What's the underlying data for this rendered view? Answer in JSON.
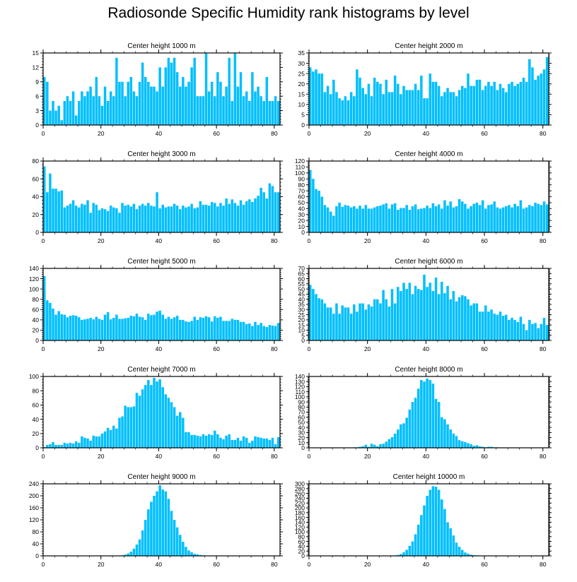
{
  "title": "Radiosonde Specific Humidity rank histograms by level",
  "colors": {
    "bar": "#00BFFF",
    "bar_edge": "#ffffff",
    "axis": "#000000"
  },
  "chart_data": [
    {
      "type": "bar",
      "title": "Center height 1000 m",
      "xlim": [
        0,
        82
      ],
      "ylim": [
        0,
        15
      ],
      "xticks": [
        0,
        20,
        40,
        60,
        80
      ],
      "yticks": [
        0,
        3,
        6,
        9,
        12,
        15
      ],
      "values": [
        10,
        9,
        3,
        5,
        3,
        4,
        1,
        5,
        6,
        5,
        7,
        2,
        5,
        7,
        6,
        7,
        8,
        6,
        10,
        6,
        4,
        8,
        5,
        7,
        6,
        14,
        9,
        9,
        6,
        9,
        10,
        7,
        6,
        9,
        13,
        10,
        9,
        8,
        8,
        7,
        12,
        8,
        12,
        14,
        13,
        14,
        11,
        8,
        10,
        8,
        9,
        12,
        14,
        6,
        6,
        6,
        15,
        7,
        9,
        6,
        11,
        9,
        6,
        8,
        14,
        5,
        15,
        8,
        11,
        6,
        7,
        5,
        11,
        7,
        8,
        6,
        5,
        10,
        5,
        5,
        6,
        5
      ]
    },
    {
      "type": "bar",
      "title": "Center height 2000 m",
      "xlim": [
        0,
        82
      ],
      "ylim": [
        0,
        35
      ],
      "xticks": [
        0,
        20,
        40,
        60,
        80
      ],
      "yticks": [
        0,
        5,
        10,
        15,
        20,
        25,
        30,
        35
      ],
      "values": [
        28,
        26,
        27,
        25,
        25,
        16,
        19,
        15,
        22,
        16,
        13,
        12,
        14,
        12,
        16,
        14,
        27,
        23,
        18,
        15,
        20,
        14,
        23,
        21,
        20,
        15,
        22,
        16,
        16,
        24,
        20,
        15,
        19,
        17,
        17,
        17,
        20,
        17,
        24,
        13,
        13,
        25,
        21,
        21,
        19,
        14,
        16,
        18,
        16,
        16,
        14,
        17,
        19,
        18,
        25,
        19,
        19,
        22,
        22,
        17,
        19,
        21,
        19,
        21,
        17,
        20,
        18,
        16,
        20,
        21,
        19,
        20,
        21,
        23,
        21,
        32,
        28,
        22,
        24,
        25,
        27,
        33
      ]
    },
    {
      "type": "bar",
      "title": "Center height 3000 m",
      "xlim": [
        0,
        82
      ],
      "ylim": [
        0,
        80
      ],
      "xticks": [
        0,
        20,
        40,
        60,
        80
      ],
      "yticks": [
        0,
        20,
        40,
        60,
        80
      ],
      "values": [
        74,
        45,
        66,
        49,
        49,
        46,
        47,
        28,
        30,
        32,
        36,
        30,
        28,
        32,
        31,
        36,
        22,
        33,
        31,
        25,
        27,
        26,
        24,
        30,
        28,
        27,
        22,
        33,
        30,
        31,
        29,
        32,
        26,
        30,
        32,
        30,
        33,
        30,
        29,
        45,
        27,
        31,
        28,
        29,
        29,
        32,
        30,
        26,
        30,
        28,
        29,
        32,
        27,
        28,
        35,
        31,
        31,
        30,
        34,
        33,
        29,
        33,
        30,
        38,
        32,
        37,
        33,
        30,
        36,
        31,
        35,
        37,
        34,
        38,
        41,
        50,
        45,
        38,
        55,
        52,
        45,
        45
      ]
    },
    {
      "type": "bar",
      "title": "Center height 4000 m",
      "xlim": [
        0,
        82
      ],
      "ylim": [
        0,
        120
      ],
      "xticks": [
        0,
        20,
        40,
        60,
        80
      ],
      "yticks": [
        0,
        10,
        20,
        30,
        40,
        50,
        60,
        70,
        80,
        90,
        100,
        110,
        120
      ],
      "values": [
        105,
        90,
        73,
        70,
        60,
        46,
        42,
        35,
        28,
        44,
        50,
        43,
        46,
        45,
        42,
        44,
        40,
        45,
        40,
        46,
        40,
        40,
        42,
        44,
        45,
        47,
        49,
        40,
        47,
        49,
        38,
        41,
        41,
        46,
        38,
        44,
        47,
        39,
        40,
        41,
        45,
        41,
        49,
        44,
        47,
        40,
        54,
        45,
        52,
        42,
        44,
        56,
        52,
        48,
        40,
        44,
        48,
        50,
        46,
        54,
        40,
        46,
        47,
        52,
        42,
        40,
        42,
        44,
        46,
        42,
        48,
        44,
        54,
        40,
        42,
        46,
        44,
        50,
        48,
        46,
        52,
        47
      ]
    },
    {
      "type": "bar",
      "title": "Center height 5000 m",
      "xlim": [
        0,
        82
      ],
      "ylim": [
        0,
        140
      ],
      "xticks": [
        0,
        20,
        40,
        60,
        80
      ],
      "yticks": [
        0,
        20,
        40,
        60,
        80,
        100,
        120,
        140
      ],
      "values": [
        125,
        78,
        73,
        62,
        50,
        57,
        51,
        50,
        45,
        48,
        49,
        48,
        45,
        40,
        41,
        42,
        44,
        41,
        46,
        42,
        40,
        50,
        55,
        41,
        44,
        50,
        42,
        42,
        43,
        44,
        48,
        47,
        52,
        46,
        45,
        40,
        52,
        49,
        50,
        56,
        58,
        50,
        42,
        46,
        42,
        45,
        48,
        40,
        40,
        37,
        36,
        38,
        46,
        40,
        45,
        44,
        47,
        45,
        37,
        47,
        44,
        46,
        38,
        38,
        38,
        42,
        40,
        40,
        36,
        36,
        32,
        33,
        28,
        36,
        30,
        34,
        28,
        26,
        30,
        29,
        28,
        34
      ]
    },
    {
      "type": "bar",
      "title": "Center height 6000 m",
      "xlim": [
        0,
        82
      ],
      "ylim": [
        0,
        70
      ],
      "xticks": [
        0,
        20,
        40,
        60,
        80
      ],
      "yticks": [
        0,
        5,
        10,
        15,
        20,
        25,
        30,
        35,
        40,
        45,
        50,
        55,
        60,
        65,
        70
      ],
      "values": [
        54,
        50,
        45,
        41,
        40,
        36,
        32,
        32,
        26,
        36,
        26,
        34,
        32,
        32,
        26,
        35,
        28,
        36,
        36,
        30,
        35,
        33,
        40,
        40,
        36,
        49,
        40,
        33,
        50,
        36,
        52,
        48,
        56,
        50,
        56,
        45,
        53,
        50,
        49,
        64,
        52,
        56,
        48,
        61,
        45,
        57,
        46,
        53,
        40,
        48,
        38,
        42,
        44,
        43,
        40,
        34,
        36,
        36,
        28,
        28,
        34,
        28,
        30,
        26,
        25,
        28,
        24,
        25,
        20,
        22,
        20,
        18,
        23,
        16,
        10,
        20,
        16,
        17,
        12,
        16,
        22,
        15
      ]
    },
    {
      "type": "bar",
      "title": "Center height 7000 m",
      "xlim": [
        0,
        82
      ],
      "ylim": [
        0,
        100
      ],
      "xticks": [
        0,
        20,
        40,
        60,
        80
      ],
      "yticks": [
        0,
        20,
        40,
        60,
        80,
        100
      ],
      "values": [
        1,
        4,
        5,
        8,
        4,
        4,
        4,
        7,
        6,
        7,
        6,
        9,
        7,
        16,
        14,
        13,
        10,
        17,
        16,
        16,
        20,
        23,
        28,
        25,
        31,
        27,
        42,
        44,
        59,
        57,
        57,
        58,
        77,
        73,
        82,
        88,
        95,
        88,
        98,
        93,
        96,
        85,
        75,
        70,
        64,
        57,
        45,
        50,
        42,
        22,
        22,
        18,
        18,
        17,
        16,
        19,
        17,
        19,
        18,
        24,
        19,
        14,
        12,
        17,
        19,
        11,
        11,
        14,
        10,
        16,
        14,
        7,
        10,
        16,
        15,
        14,
        13,
        13,
        11,
        14,
        5,
        15
      ]
    },
    {
      "type": "bar",
      "title": "Center height 8000 m",
      "xlim": [
        0,
        82
      ],
      "ylim": [
        0,
        140
      ],
      "xticks": [
        0,
        20,
        40,
        60,
        80
      ],
      "yticks": [
        0,
        10,
        20,
        30,
        40,
        50,
        60,
        70,
        80,
        90,
        100,
        110,
        120,
        130,
        140
      ],
      "values": [
        0,
        0,
        0,
        0,
        0,
        0,
        0,
        0,
        0,
        0,
        0,
        0,
        0,
        0,
        0,
        1,
        1,
        2,
        3,
        6,
        2,
        8,
        6,
        3,
        7,
        8,
        12,
        17,
        21,
        28,
        36,
        46,
        48,
        59,
        75,
        90,
        98,
        116,
        133,
        130,
        136,
        133,
        126,
        96,
        90,
        60,
        56,
        46,
        36,
        28,
        23,
        15,
        13,
        11,
        9,
        7,
        4,
        5,
        3,
        2,
        1,
        2,
        2,
        1,
        1,
        0,
        0,
        0,
        0,
        0,
        0,
        0,
        0,
        0,
        0,
        0,
        0,
        0,
        0,
        0,
        0,
        0
      ]
    },
    {
      "type": "bar",
      "title": "Center height 9000 m",
      "xlim": [
        0,
        82
      ],
      "ylim": [
        0,
        240
      ],
      "xticks": [
        0,
        20,
        40,
        60,
        80
      ],
      "yticks": [
        0,
        40,
        80,
        120,
        160,
        200,
        240
      ],
      "values": [
        0,
        0,
        0,
        0,
        0,
        0,
        0,
        0,
        0,
        0,
        0,
        0,
        0,
        0,
        0,
        0,
        0,
        0,
        0,
        0,
        0,
        0,
        0,
        0,
        0,
        0,
        1,
        2,
        4,
        8,
        14,
        24,
        38,
        55,
        85,
        120,
        155,
        180,
        200,
        215,
        235,
        221,
        215,
        190,
        150,
        120,
        95,
        70,
        47,
        30,
        18,
        12,
        7,
        5,
        3,
        2,
        1,
        1,
        0,
        0,
        0,
        0,
        0,
        0,
        0,
        0,
        0,
        0,
        0,
        0,
        0,
        0,
        0,
        0,
        0,
        0,
        0,
        0,
        0,
        0,
        0,
        0
      ]
    },
    {
      "type": "bar",
      "title": "Center height 10000 m",
      "xlim": [
        0,
        82
      ],
      "ylim": [
        0,
        300
      ],
      "xticks": [
        0,
        20,
        40,
        60,
        80
      ],
      "yticks": [
        0,
        20,
        40,
        60,
        80,
        100,
        120,
        140,
        160,
        180,
        200,
        220,
        240,
        260,
        280,
        300
      ],
      "values": [
        0,
        0,
        0,
        0,
        0,
        0,
        0,
        0,
        0,
        0,
        0,
        0,
        0,
        0,
        0,
        0,
        0,
        0,
        0,
        0,
        0,
        0,
        0,
        0,
        0,
        0,
        0,
        0,
        1,
        2,
        4,
        8,
        15,
        25,
        42,
        60,
        90,
        130,
        170,
        210,
        250,
        275,
        290,
        288,
        275,
        235,
        195,
        140,
        115,
        85,
        55,
        38,
        25,
        14,
        9,
        5,
        3,
        2,
        1,
        0,
        0,
        0,
        0,
        0,
        0,
        0,
        0,
        0,
        0,
        0,
        0,
        0,
        0,
        0,
        0,
        0,
        0,
        0,
        0,
        0,
        0,
        0
      ]
    }
  ]
}
